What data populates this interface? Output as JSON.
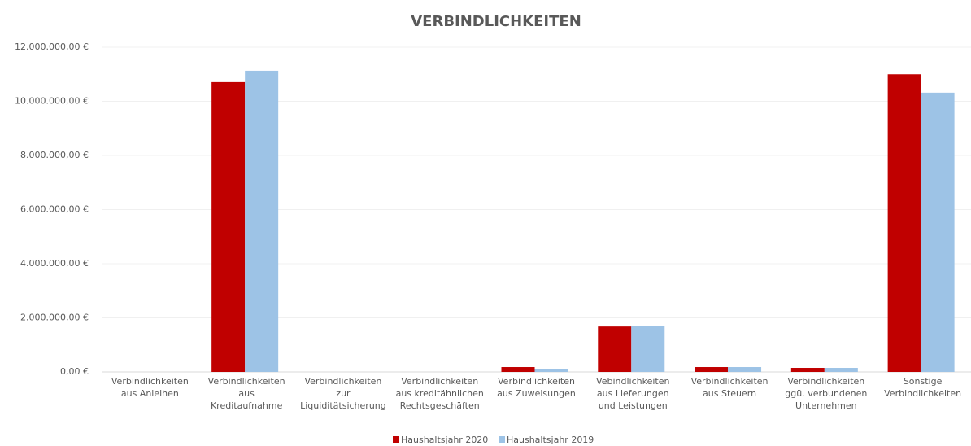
{
  "chart_data": {
    "type": "bar",
    "title": "VERBINDLICHKEITEN",
    "categories": [
      "Verbindlichkeiten\naus Anleihen",
      "Verbindlichkeiten\naus\nKreditaufnahme",
      "Verbindlichkeiten\nzur\nLiquiditätsicherung",
      "Verbindlichkeiten\naus kreditähnlichen\nRechtsgeschäften",
      "Verbindlichkeiten\naus Zuweisungen",
      "Vebindlichkeiten\naus Lieferungen\nund Leistungen",
      "Verbindlichkeiten\naus Steuern",
      "Verbindlichkeiten\nggü. verbundenen\nUnternehmen",
      "Sonstige\nVerbindlichkeiten"
    ],
    "series": [
      {
        "name": "Haushaltsjahr 2020",
        "color": "#c00000",
        "values": [
          0,
          10710000,
          0,
          0,
          180000,
          1680000,
          180000,
          150000,
          11000000
        ]
      },
      {
        "name": "Haushaltsjahr 2019",
        "color": "#9dc3e6",
        "values": [
          0,
          11130000,
          0,
          0,
          120000,
          1710000,
          180000,
          150000,
          10320000
        ]
      }
    ],
    "ylim": [
      0,
      12000000
    ],
    "yticks": [
      {
        "value": 0,
        "label": "0,00 €"
      },
      {
        "value": 2000000,
        "label": "2.000.000,00 €"
      },
      {
        "value": 4000000,
        "label": "4.000.000,00 €"
      },
      {
        "value": 6000000,
        "label": "6.000.000,00 €"
      },
      {
        "value": 8000000,
        "label": "8.000.000,00 €"
      },
      {
        "value": 10000000,
        "label": "10.000.000,00 €"
      },
      {
        "value": 12000000,
        "label": "12.000.000,00 €"
      }
    ],
    "grid": true,
    "legend": "bottom"
  }
}
